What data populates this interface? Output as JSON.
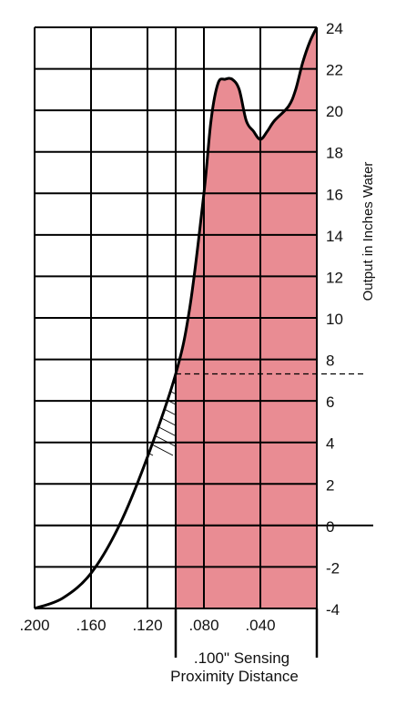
{
  "chart_data": {
    "type": "area",
    "ylabel": "Output in Inches Water",
    "xlim": [
      0.2,
      0.0
    ],
    "ylim": [
      -4,
      24
    ],
    "x_ticks": [
      ".200",
      ".160",
      ".120",
      ".080",
      ".040"
    ],
    "x_tick_values": [
      0.2,
      0.16,
      0.12,
      0.08,
      0.04
    ],
    "y_ticks": [
      "24",
      "22",
      "20",
      "18",
      "16",
      "14",
      "12",
      "10",
      "8",
      "6",
      "4",
      "2",
      "0",
      "-2",
      "-4"
    ],
    "y_tick_values": [
      24,
      22,
      20,
      18,
      16,
      14,
      12,
      10,
      8,
      6,
      4,
      2,
      0,
      -2,
      -4
    ],
    "grid": true,
    "series": [
      {
        "x": [
          0.2,
          0.18,
          0.16,
          0.14,
          0.12,
          0.1,
          0.09,
          0.08,
          0.075,
          0.07,
          0.065,
          0.06,
          0.055,
          0.05,
          0.045,
          0.04,
          0.035,
          0.03,
          0.02,
          0.015,
          0.01,
          0.005,
          0.0
        ],
        "y": [
          -4,
          -3.5,
          -2.3,
          0,
          3.3,
          7.3,
          10.5,
          16.0,
          19.5,
          21.3,
          21.5,
          21.5,
          21.0,
          19.5,
          19.0,
          18.6,
          19.0,
          19.5,
          20.2,
          21.0,
          22.3,
          23.3,
          24
        ]
      }
    ],
    "annotations": {
      "reference_value": 7.3,
      "sensing_distance": 0.1,
      "sensing_label_line1": ".100\" Sensing",
      "sensing_label_line2": "Proximity Distance"
    },
    "colors": {
      "fill": "#e98c93",
      "grid": "#000000",
      "curve": "#000000"
    }
  }
}
